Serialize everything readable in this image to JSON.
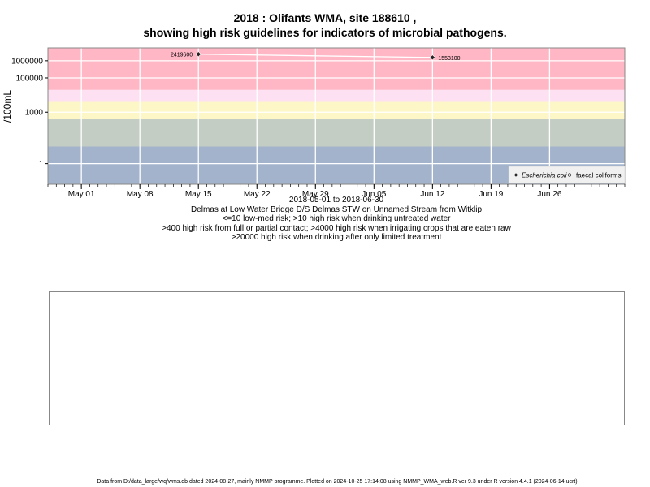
{
  "title_line1": "2018 : Olifants WMA, site 188610 ,",
  "title_line2": "showing high risk guidelines for indicators of microbial pathogens.",
  "caption_lines": [
    "2018-05-01 to 2018-06-30",
    "Delmas at Low Water Bridge D/S Delmas STW on Unnamed Stream from Witklip",
    "<=10 low-med risk; >10 high risk when drinking untreated water",
    ">400 high risk from full or partial contact; >4000 high risk when irrigating crops that are eaten raw",
    ">20000 high risk when drinking after only limited treatment"
  ],
  "footer": "Data from D:/data_large/wq/wms.db dated 2024-08-27, mainly NMMP programme. Plotted on 2024-10-25 17:14:08 using NMMP_WMA_web.R ver 9.3 under R version 4.4.1 (2024-06-14 ucrt)",
  "chart_data": {
    "type": "line",
    "ylabel": "/100mL",
    "y_scale": "log",
    "x_range": [
      "2018-04-27",
      "2018-07-05"
    ],
    "y_range_log10": [
      -1.2,
      6.75
    ],
    "x_ticks": [
      {
        "date": "2018-05-01",
        "label": "May 01"
      },
      {
        "date": "2018-05-08",
        "label": "May 08"
      },
      {
        "date": "2018-05-15",
        "label": "May 15"
      },
      {
        "date": "2018-05-22",
        "label": "May 22"
      },
      {
        "date": "2018-05-29",
        "label": "May 29"
      },
      {
        "date": "2018-06-05",
        "label": "Jun 05"
      },
      {
        "date": "2018-06-12",
        "label": "Jun 12"
      },
      {
        "date": "2018-06-19",
        "label": "Jun 19"
      },
      {
        "date": "2018-06-26",
        "label": "Jun 26"
      }
    ],
    "y_ticks": [
      {
        "value": 1,
        "label": "1"
      },
      {
        "value": 1000,
        "label": "1000"
      },
      {
        "value": 100000,
        "label": "100000"
      },
      {
        "value": 1000000,
        "label": "1000000"
      }
    ],
    "risk_bands": [
      {
        "from": 0.063,
        "to": 10,
        "color": "#a3b3cc"
      },
      {
        "from": 10,
        "to": 400,
        "color": "#c3cdc4"
      },
      {
        "from": 400,
        "to": 4000,
        "color": "#fdf6c6"
      },
      {
        "from": 4000,
        "to": 20000,
        "color": "#fde1f2"
      },
      {
        "from": 20000,
        "to": 5600000,
        "color": "#ffb6c5"
      }
    ],
    "grid": true,
    "legend_position": "bottom-right",
    "series": [
      {
        "name": "Escherichia coli",
        "marker": "filled-diamond",
        "color": "#222222",
        "points": [
          {
            "date": "2018-05-15",
            "value": 2419600,
            "label": "2419600"
          },
          {
            "date": "2018-06-12",
            "value": 1553100,
            "label": "1553100"
          }
        ]
      },
      {
        "name": "faecal coliforms",
        "marker": "open-circle",
        "color": "#222222",
        "points": []
      }
    ]
  }
}
